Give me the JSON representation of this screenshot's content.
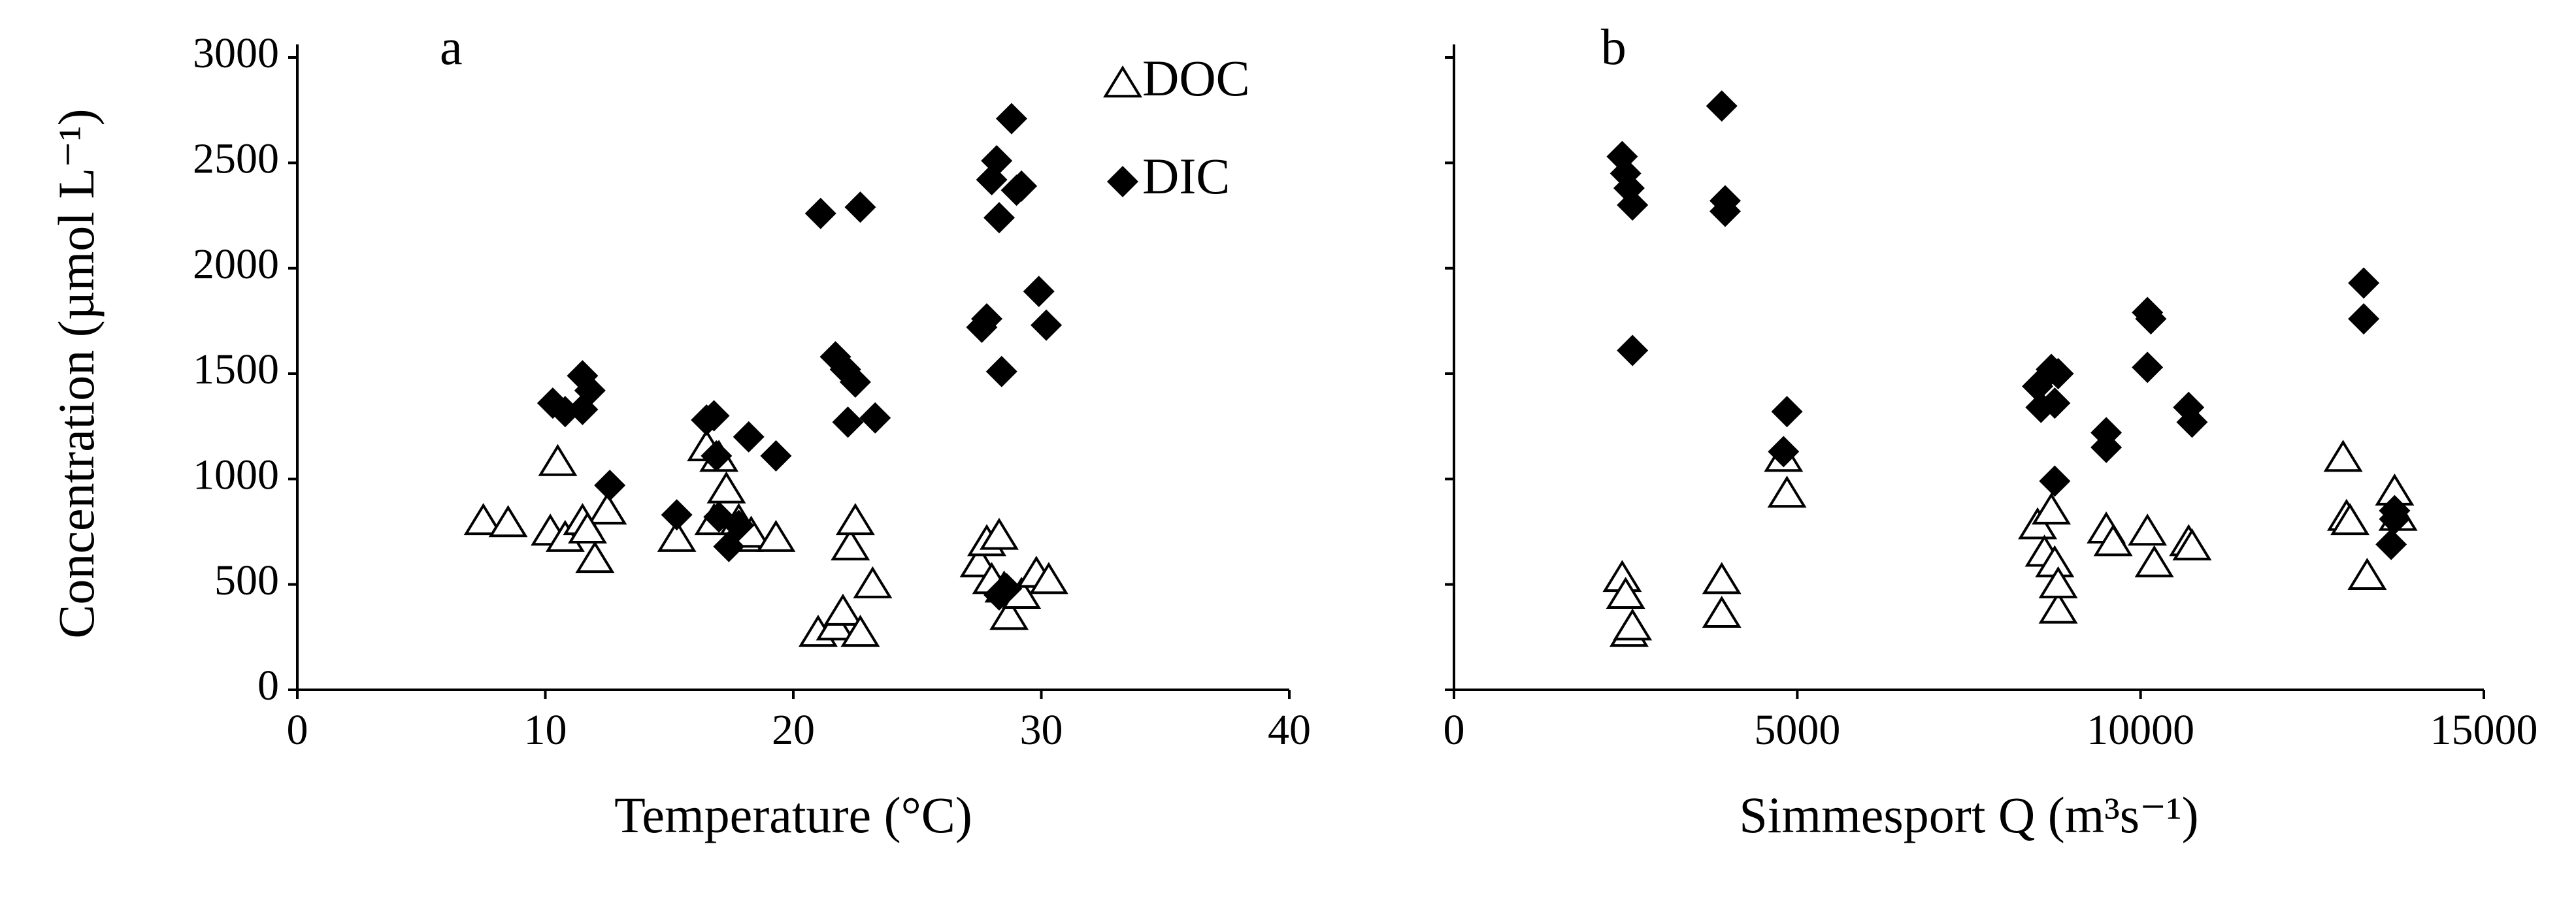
{
  "chart_data": [
    {
      "type": "scatter",
      "annotation": "a",
      "xlabel": "Temperature (°C)",
      "ylabel": "Concentration (µmol L⁻¹)",
      "xlim": [
        0,
        40
      ],
      "xticks": [
        0,
        10,
        20,
        30,
        40
      ],
      "ylim": [
        0,
        3000
      ],
      "yticks": [
        0,
        500,
        1000,
        1500,
        2000,
        2500,
        3000
      ],
      "show_ytick_labels": true,
      "legend": "upper right",
      "series": [
        {
          "name": "DOC",
          "color": "#000000",
          "marker": "triangle-open",
          "x": [
            7.5,
            8.5,
            10.5,
            10.2,
            10.8,
            11.5,
            12,
            12.5,
            11.7,
            15.3,
            16.5,
            16.8,
            17,
            17.3,
            17.8,
            18,
            18.3,
            19.3,
            21,
            21.7,
            22,
            22.3,
            22.5,
            22.7,
            23.2,
            27.5,
            27.8,
            28,
            28.3,
            28.5,
            28.7,
            29.2,
            29.8,
            30.3
          ],
          "values": [
            800,
            790,
            1080,
            750,
            720,
            800,
            620,
            850,
            760,
            720,
            1150,
            800,
            1100,
            950,
            800,
            720,
            740,
            720,
            270,
            300,
            370,
            680,
            800,
            270,
            500,
            600,
            700,
            520,
            730,
            480,
            350,
            450,
            550,
            520
          ]
        },
        {
          "name": "DIC",
          "color": "#000000",
          "marker": "diamond",
          "x": [
            10.3,
            10.8,
            11.5,
            11.8,
            11.5,
            12.6,
            15.3,
            16.5,
            16.8,
            16.9,
            17,
            17.4,
            17.8,
            18.2,
            19.3,
            21.1,
            21.7,
            22.1,
            22.2,
            22.5,
            22.7,
            23.3,
            27.6,
            27.8,
            28,
            28.2,
            28.3,
            28.4,
            28.8,
            29,
            29.2,
            29.9,
            30.2,
            28.3,
            28.6
          ],
          "values": [
            1360,
            1320,
            1490,
            1420,
            1330,
            970,
            830,
            1280,
            1300,
            1110,
            820,
            680,
            780,
            1200,
            1110,
            2260,
            1580,
            1520,
            1270,
            1460,
            2290,
            1290,
            1720,
            1760,
            2420,
            2510,
            2240,
            1510,
            2710,
            2370,
            2390,
            1890,
            1730,
            450,
            480
          ]
        }
      ]
    },
    {
      "type": "scatter",
      "annotation": "b",
      "xlabel": "Simmesport Q (m³s⁻¹)",
      "xlim": [
        0,
        15000
      ],
      "xticks": [
        0,
        5000,
        10000,
        15000
      ],
      "ylim": [
        0,
        3000
      ],
      "yticks": [
        0,
        500,
        1000,
        1500,
        2000,
        2500,
        3000
      ],
      "show_ytick_labels": false,
      "series": [
        {
          "color": "#000000",
          "marker": "triangle-open",
          "x": [
            2450,
            2500,
            2550,
            2600,
            3900,
            3900,
            4800,
            4850,
            8500,
            8600,
            8700,
            8750,
            8800,
            8800,
            9500,
            9600,
            10100,
            10200,
            10700,
            10750,
            12950,
            13000,
            13050,
            13300,
            13700,
            13750
          ],
          "values": [
            530,
            450,
            270,
            300,
            520,
            360,
            1100,
            930,
            780,
            650,
            850,
            600,
            380,
            500,
            760,
            700,
            750,
            600,
            700,
            680,
            1100,
            820,
            800,
            540,
            940,
            820
          ]
        },
        {
          "color": "#000000",
          "marker": "diamond",
          "x": [
            2450,
            2500,
            2550,
            2600,
            2600,
            3900,
            3950,
            3950,
            4850,
            4800,
            8500,
            8550,
            8700,
            8750,
            8800,
            8750,
            9500,
            9500,
            10100,
            10150,
            10100,
            10700,
            10750,
            13250,
            13250,
            13700,
            13700,
            13650
          ],
          "values": [
            2530,
            2450,
            2380,
            2300,
            1610,
            2770,
            2320,
            2270,
            1320,
            1130,
            1440,
            1340,
            1520,
            1360,
            1500,
            990,
            1220,
            1150,
            1790,
            1760,
            1530,
            1340,
            1270,
            1930,
            1760,
            850,
            810,
            690
          ]
        }
      ]
    }
  ]
}
